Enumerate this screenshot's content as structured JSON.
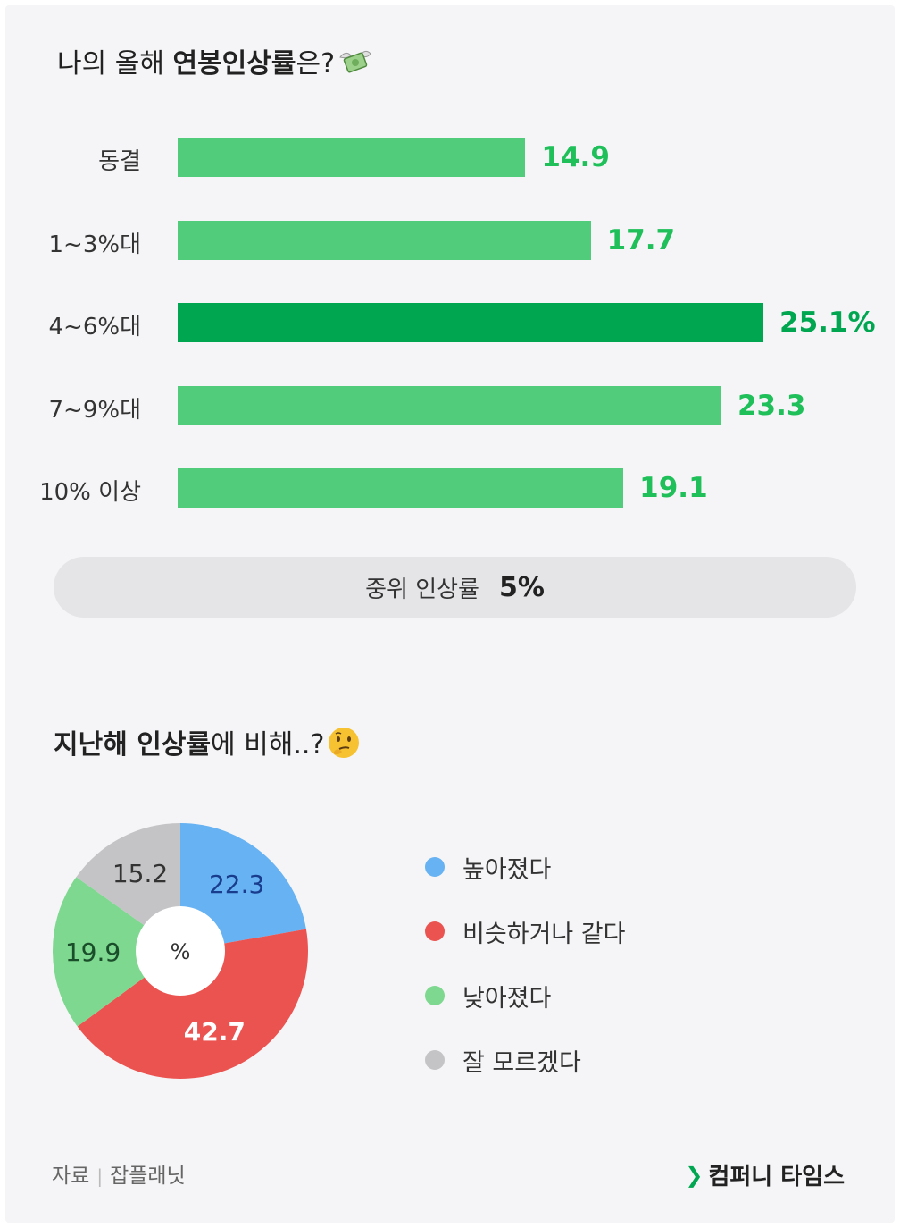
{
  "top_chart": {
    "title_prefix": "나의 올해 ",
    "title_bold": "연봉인상률",
    "title_suffix": "은?",
    "title_emoji": "money-with-wings-emoji"
  },
  "chart_data": [
    {
      "type": "bar",
      "orientation": "horizontal",
      "title": "나의 올해 연봉인상률은?",
      "categories": [
        "동결",
        "1~3%대",
        "4~6%대",
        "7~9%대",
        "10% 이상"
      ],
      "values": [
        14.9,
        17.7,
        25.1,
        23.3,
        19.1
      ],
      "value_labels": [
        "14.9",
        "17.7",
        "25.1%",
        "23.3",
        "19.1"
      ],
      "highlight_index": 2,
      "xlim": [
        0,
        25.1
      ],
      "unit": "%",
      "colors": {
        "bar": "#50cc7a",
        "highlight": "#00a650",
        "label": "#1fbf5a"
      }
    },
    {
      "type": "pie",
      "style": "donut",
      "title": "지난해 인상률에 비해..?",
      "center_label": "%",
      "labels": [
        "높아졌다",
        "비슷하거나 같다",
        "낮아졌다",
        "잘 모르겠다"
      ],
      "values": [
        22.3,
        42.7,
        19.9,
        15.2
      ],
      "value_labels": [
        "22.3",
        "42.7",
        "19.9",
        "15.2"
      ],
      "colors": [
        "#66b2f2",
        "#eb5350",
        "#7ed88f",
        "#c4c4c6"
      ],
      "label_colors": [
        "#1a3c8c",
        "#ffffff",
        "#1a4d2a",
        "#333333"
      ],
      "legend_position": "right"
    }
  ],
  "median": {
    "label": "중위 인상률",
    "value": "5%"
  },
  "bottom_chart": {
    "title_bold": "지난해 인상률",
    "title_rest": "에 비해..?",
    "title_emoji": "thinking-face-emoji"
  },
  "footer": {
    "source_label": "자료",
    "source_sep": "|",
    "source_name": "잡플래닛",
    "brand_mark": "❯",
    "brand_name": "컴퍼니 타임스"
  }
}
